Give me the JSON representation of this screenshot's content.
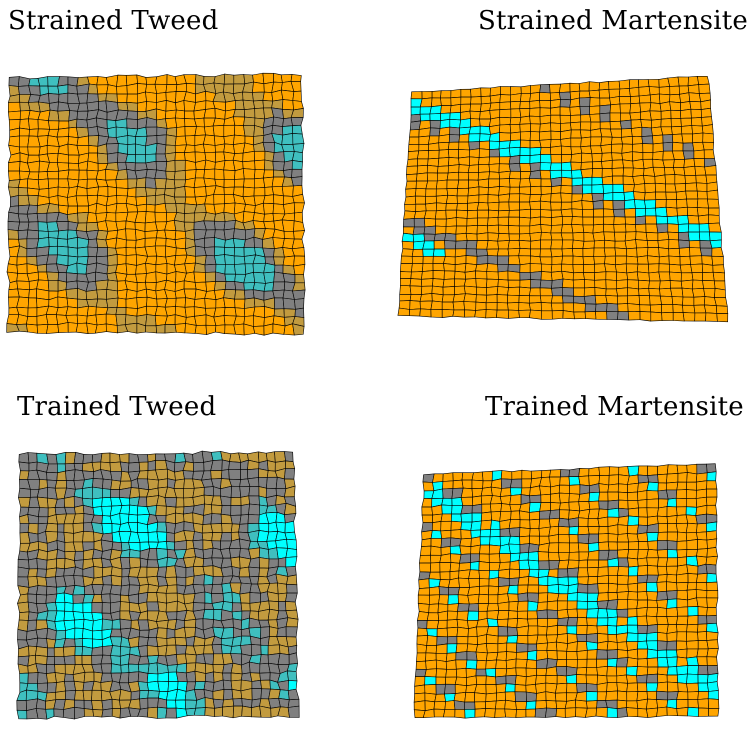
{
  "colors": {
    "orange": "#ffa500",
    "gray": "#808080",
    "cyan": "#00ffff",
    "tan": "#c29b3f",
    "teal": "#3fbfbf",
    "cell_edge": "#000000"
  },
  "panels": [
    {
      "id": "strained-tweed",
      "title": "Strained Tweed",
      "pattern": "tweed-orange"
    },
    {
      "id": "strained-martensite",
      "title": "Strained Martensite",
      "pattern": "martensite-sparse"
    },
    {
      "id": "trained-tweed",
      "title": "Trained Tweed",
      "pattern": "tweed-mixed"
    },
    {
      "id": "trained-martensite",
      "title": "Trained Martensite",
      "pattern": "martensite-dense"
    }
  ]
}
